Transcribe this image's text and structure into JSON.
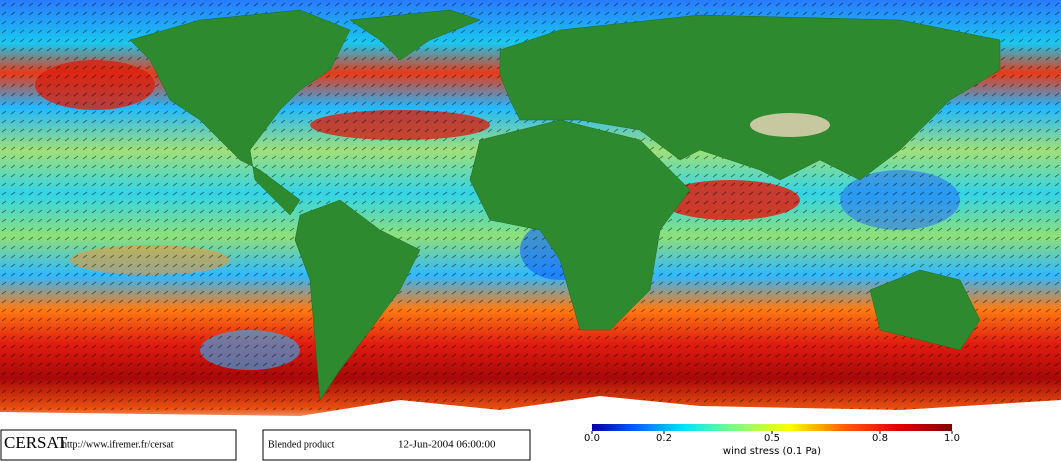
{
  "header": {
    "logo": "CERSAT",
    "url": "http://www.ifremer.fr/cersat"
  },
  "product": {
    "name": "Blended product",
    "datetime": "12-Jun-2004 06:00:00"
  },
  "colorbar": {
    "label": "wind stress (0.1 Pa)",
    "lim": [
      0,
      1
    ],
    "ticks": [
      {
        "value": 0,
        "label": "0.0"
      },
      0.2,
      0.5,
      0.8,
      {
        "value": 1,
        "label": "1.0"
      }
    ]
  }
}
